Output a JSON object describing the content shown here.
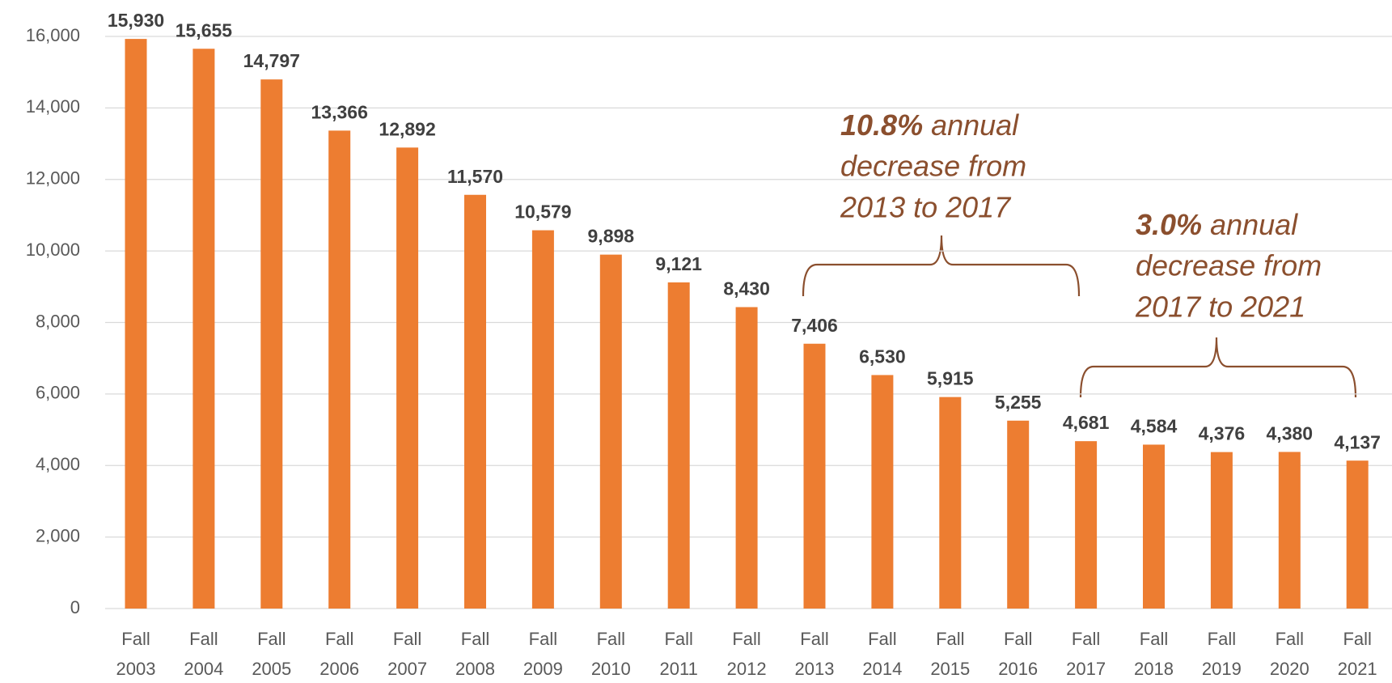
{
  "chart_data": {
    "type": "bar",
    "categories": [
      "Fall 2003",
      "Fall 2004",
      "Fall 2005",
      "Fall 2006",
      "Fall 2007",
      "Fall 2008",
      "Fall 2009",
      "Fall 2010",
      "Fall 2011",
      "Fall 2012",
      "Fall 2013",
      "Fall 2014",
      "Fall 2015",
      "Fall 2016",
      "Fall 2017",
      "Fall 2018",
      "Fall 2019",
      "Fall 2020",
      "Fall 2021"
    ],
    "values": [
      15930,
      15655,
      14797,
      13366,
      12892,
      11570,
      10579,
      9898,
      9121,
      8430,
      7406,
      6530,
      5915,
      5255,
      4681,
      4584,
      4376,
      4380,
      4137
    ],
    "value_labels": [
      "15,930",
      "15,655",
      "14,797",
      "13,366",
      "12,892",
      "11,570",
      "10,579",
      "9,898",
      "9,121",
      "8,430",
      "7,406",
      "6,530",
      "5,915",
      "5,255",
      "4,681",
      "4,584",
      "4,376",
      "4,380",
      "4,137"
    ],
    "color": "#ED7D31",
    "ylim": [
      0,
      16000
    ],
    "yticks": [
      0,
      {
        "value": 2000,
        "label": "2,000"
      },
      {
        "value": 4000,
        "label": "4,000"
      },
      {
        "value": 6000,
        "label": "6,000"
      },
      {
        "value": 8000,
        "label": "8,000"
      },
      {
        "value": 10000,
        "label": "10,000"
      },
      {
        "value": 12000,
        "label": "12,000"
      },
      {
        "value": 14000,
        "label": "14,000"
      },
      {
        "value": 16000,
        "label": "16,000"
      }
    ],
    "grid": true,
    "annotations": [
      {
        "highlight": "10.8%",
        "lines": [
          "annual",
          "decrease from",
          "2013 to 2017"
        ]
      },
      {
        "highlight": "3.0%",
        "lines": [
          "annual",
          "decrease from",
          "2017 to 2021"
        ]
      }
    ]
  }
}
